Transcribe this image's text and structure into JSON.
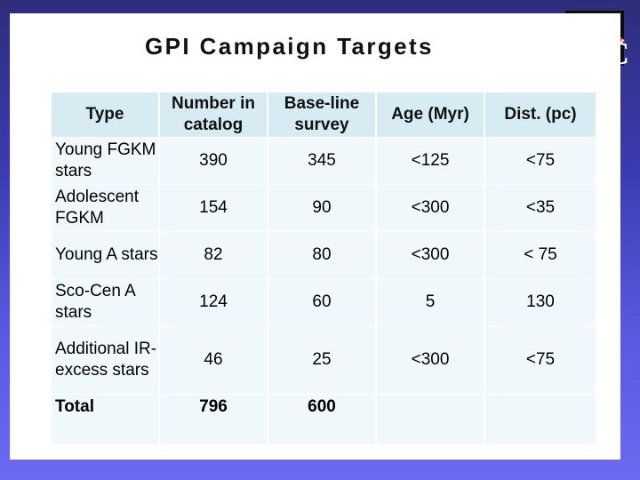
{
  "title": "GPI Campaign Targets",
  "table": {
    "headers": [
      "Type",
      "Number in catalog",
      "Base-line survey",
      "Age (Myr)",
      "Dist. (pc)"
    ],
    "rows": [
      [
        "Young FGKM stars",
        "390",
        "345",
        "<125",
        "<75"
      ],
      [
        "Adolescent FGKM",
        "154",
        "90",
        "<300",
        "<35"
      ],
      [
        "Young A stars",
        "82",
        "80",
        "<300",
        "< 75"
      ],
      [
        "Sco-Cen A stars",
        "124",
        "60",
        "5",
        "130"
      ],
      [
        "Additional IR-excess stars",
        "46",
        "25",
        "<300",
        "<75"
      ],
      [
        "Total",
        "796",
        "600",
        "",
        ""
      ]
    ]
  },
  "colors": {
    "header_fill": "#d7ecf2",
    "cell_fill": "#f0f8fb",
    "background_top": "#2d2d7a",
    "background_bottom": "#6b6bf2"
  }
}
